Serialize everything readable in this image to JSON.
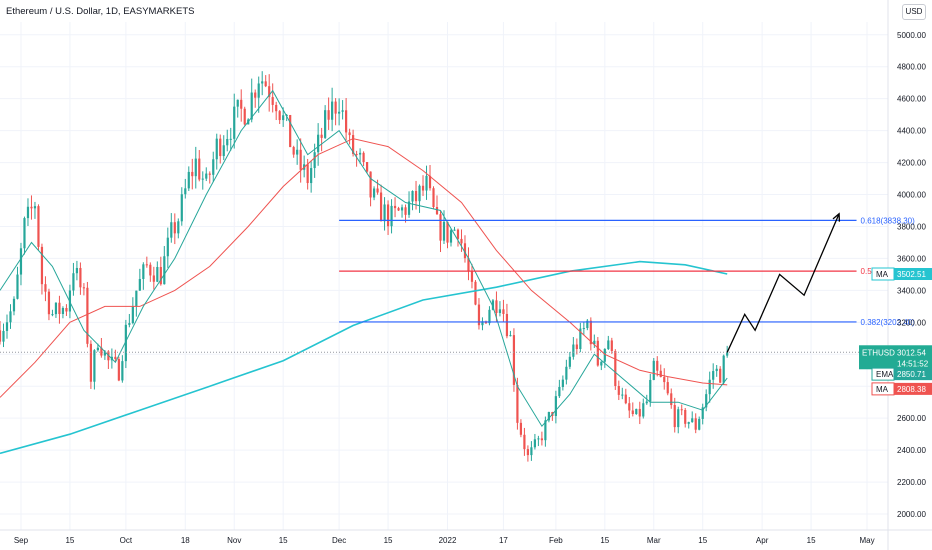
{
  "header": {
    "title": "Ethereum / U.S. Dollar, 1D, EASYMARKETS",
    "currency_button": "USD"
  },
  "colors": {
    "up": "#26a69a",
    "down": "#ef5350",
    "ema": "#26a69a",
    "ma": "#ef5350",
    "ma200": "#25c4d0",
    "fib_blue": "#2962ff",
    "fib_red": "#f23645",
    "last_price": "#22ab94",
    "projection": "#000000"
  },
  "chart_data": {
    "type": "candlestick",
    "symbol": "ETHUSD",
    "y_ticks": [
      2000,
      2200,
      2400,
      2600,
      2800,
      3000,
      3200,
      3400,
      3600,
      3800,
      4000,
      4200,
      4400,
      4600,
      4800,
      5000
    ],
    "y_tick_labels": [
      "2000.00",
      "2200.00",
      "2400.00",
      "2600.00",
      "2800.00",
      "3000.00",
      "3200.00",
      "3400.00",
      "3600.00",
      "3800.00",
      "4000.00",
      "4200.00",
      "4400.00",
      "4600.00",
      "4800.00",
      "5000.00"
    ],
    "x_ticks": [
      {
        "label": "Sep",
        "date": "2021-09-01"
      },
      {
        "label": "15",
        "date": "2021-09-15"
      },
      {
        "label": "Oct",
        "date": "2021-10-01"
      },
      {
        "label": "18",
        "date": "2021-10-18"
      },
      {
        "label": "Nov",
        "date": "2021-11-01"
      },
      {
        "label": "15",
        "date": "2021-11-15"
      },
      {
        "label": "Dec",
        "date": "2021-12-01"
      },
      {
        "label": "15",
        "date": "2021-12-15"
      },
      {
        "label": "2022",
        "date": "2022-01-01"
      },
      {
        "label": "17",
        "date": "2022-01-17"
      },
      {
        "label": "Feb",
        "date": "2022-02-01"
      },
      {
        "label": "15",
        "date": "2022-02-15"
      },
      {
        "label": "Mar",
        "date": "2022-03-01"
      },
      {
        "label": "15",
        "date": "2022-03-15"
      },
      {
        "label": "Apr",
        "date": "2022-04-01"
      },
      {
        "label": "15",
        "date": "2022-04-15"
      },
      {
        "label": "May",
        "date": "2022-05-01"
      }
    ],
    "price_path": [
      [
        "2021-08-26",
        3150
      ],
      [
        "2021-08-30",
        3300
      ],
      [
        "2021-09-02",
        3800
      ],
      [
        "2021-09-05",
        3950
      ],
      [
        "2021-09-07",
        3450
      ],
      [
        "2021-09-10",
        3250
      ],
      [
        "2021-09-14",
        3300
      ],
      [
        "2021-09-16",
        3550
      ],
      [
        "2021-09-19",
        3350
      ],
      [
        "2021-09-21",
        2850
      ],
      [
        "2021-09-23",
        3100
      ],
      [
        "2021-09-26",
        2950
      ],
      [
        "2021-09-29",
        2900
      ],
      [
        "2021-10-01",
        3150
      ],
      [
        "2021-10-04",
        3400
      ],
      [
        "2021-10-07",
        3550
      ],
      [
        "2021-10-11",
        3500
      ],
      [
        "2021-10-14",
        3750
      ],
      [
        "2021-10-16",
        3850
      ],
      [
        "2021-10-19",
        4100
      ],
      [
        "2021-10-21",
        4200
      ],
      [
        "2021-10-24",
        4050
      ],
      [
        "2021-10-27",
        4300
      ],
      [
        "2021-10-30",
        4400
      ],
      [
        "2021-11-02",
        4500
      ],
      [
        "2021-11-05",
        4550
      ],
      [
        "2021-11-08",
        4750
      ],
      [
        "2021-11-10",
        4700
      ],
      [
        "2021-11-13",
        4600
      ],
      [
        "2021-11-16",
        4400
      ],
      [
        "2021-11-19",
        4200
      ],
      [
        "2021-11-22",
        4100
      ],
      [
        "2021-11-25",
        4300
      ],
      [
        "2021-11-28",
        4500
      ],
      [
        "2021-12-01",
        4600
      ],
      [
        "2021-12-04",
        4300
      ],
      [
        "2021-12-07",
        4200
      ],
      [
        "2021-12-10",
        4000
      ],
      [
        "2021-12-13",
        3900
      ],
      [
        "2021-12-16",
        3850
      ],
      [
        "2021-12-19",
        3900
      ],
      [
        "2021-12-22",
        3950
      ],
      [
        "2021-12-26",
        4050
      ],
      [
        "2021-12-29",
        3800
      ],
      [
        "2022-01-01",
        3750
      ],
      [
        "2022-01-04",
        3800
      ],
      [
        "2022-01-07",
        3500
      ],
      [
        "2022-01-10",
        3150
      ],
      [
        "2022-01-13",
        3300
      ],
      [
        "2022-01-16",
        3350
      ],
      [
        "2022-01-19",
        3100
      ],
      [
        "2022-01-21",
        2600
      ],
      [
        "2022-01-24",
        2350
      ],
      [
        "2022-01-27",
        2450
      ],
      [
        "2022-01-30",
        2600
      ],
      [
        "2022-02-02",
        2750
      ],
      [
        "2022-02-05",
        3000
      ],
      [
        "2022-02-08",
        3100
      ],
      [
        "2022-02-10",
        3200
      ],
      [
        "2022-02-13",
        2950
      ],
      [
        "2022-02-16",
        3100
      ],
      [
        "2022-02-18",
        2850
      ],
      [
        "2022-02-21",
        2650
      ],
      [
        "2022-02-24",
        2600
      ],
      [
        "2022-02-27",
        2700
      ],
      [
        "2022-03-01",
        2900
      ],
      [
        "2022-03-04",
        2800
      ],
      [
        "2022-03-07",
        2600
      ],
      [
        "2022-03-10",
        2600
      ],
      [
        "2022-03-13",
        2550
      ],
      [
        "2022-03-16",
        2750
      ],
      [
        "2022-03-18",
        2900
      ],
      [
        "2022-03-20",
        2880
      ],
      [
        "2022-03-22",
        3012.54
      ]
    ],
    "ema_path": [
      [
        "2021-08-26",
        3400
      ],
      [
        "2021-09-04",
        3700
      ],
      [
        "2021-09-10",
        3550
      ],
      [
        "2021-09-19",
        3150
      ],
      [
        "2021-09-28",
        2950
      ],
      [
        "2021-10-06",
        3300
      ],
      [
        "2021-10-15",
        3600
      ],
      [
        "2021-10-24",
        4000
      ],
      [
        "2021-11-03",
        4400
      ],
      [
        "2021-11-12",
        4650
      ],
      [
        "2021-11-22",
        4250
      ],
      [
        "2021-12-01",
        4400
      ],
      [
        "2021-12-10",
        4100
      ],
      [
        "2021-12-20",
        3950
      ],
      [
        "2021-12-30",
        3900
      ],
      [
        "2022-01-07",
        3600
      ],
      [
        "2022-01-14",
        3300
      ],
      [
        "2022-01-21",
        2800
      ],
      [
        "2022-01-28",
        2550
      ],
      [
        "2022-02-05",
        2750
      ],
      [
        "2022-02-12",
        3000
      ],
      [
        "2022-02-20",
        2850
      ],
      [
        "2022-02-28",
        2700
      ],
      [
        "2022-03-08",
        2700
      ],
      [
        "2022-03-15",
        2650
      ],
      [
        "2022-03-22",
        2850.71
      ]
    ],
    "ma_path": [
      [
        "2021-08-26",
        2730
      ],
      [
        "2021-09-05",
        2950
      ],
      [
        "2021-09-15",
        3200
      ],
      [
        "2021-09-25",
        3300
      ],
      [
        "2021-10-05",
        3300
      ],
      [
        "2021-10-15",
        3400
      ],
      [
        "2021-10-25",
        3550
      ],
      [
        "2021-11-05",
        3800
      ],
      [
        "2021-11-15",
        4050
      ],
      [
        "2021-11-25",
        4250
      ],
      [
        "2021-12-05",
        4350
      ],
      [
        "2021-12-15",
        4300
      ],
      [
        "2021-12-25",
        4150
      ],
      [
        "2022-01-05",
        3950
      ],
      [
        "2022-01-15",
        3650
      ],
      [
        "2022-01-25",
        3400
      ],
      [
        "2022-02-05",
        3200
      ],
      [
        "2022-02-15",
        3000
      ],
      [
        "2022-02-25",
        2900
      ],
      [
        "2022-03-05",
        2860
      ],
      [
        "2022-03-15",
        2820
      ],
      [
        "2022-03-22",
        2808.38
      ]
    ],
    "ma200_path": [
      [
        "2021-08-26",
        2380
      ],
      [
        "2021-09-15",
        2500
      ],
      [
        "2021-10-05",
        2650
      ],
      [
        "2021-10-25",
        2800
      ],
      [
        "2021-11-15",
        2960
      ],
      [
        "2021-12-05",
        3180
      ],
      [
        "2021-12-25",
        3340
      ],
      [
        "2022-01-15",
        3420
      ],
      [
        "2022-02-05",
        3520
      ],
      [
        "2022-02-25",
        3580
      ],
      [
        "2022-03-10",
        3560
      ],
      [
        "2022-03-22",
        3502.51
      ]
    ],
    "projection_path": [
      [
        "2022-03-22",
        3012.54
      ],
      [
        "2022-03-27",
        3250
      ],
      [
        "2022-03-30",
        3150
      ],
      [
        "2022-04-06",
        3500
      ],
      [
        "2022-04-13",
        3370
      ],
      [
        "2022-04-23",
        3880
      ]
    ],
    "fib_levels": [
      {
        "ratio": "0.618",
        "value": 3838.3,
        "label": "0.618(3838.30)",
        "color": "blue",
        "start": "2021-12-01"
      },
      {
        "ratio": "0.5",
        "value": 3520.35,
        "label": "0.5(3520.35)",
        "color": "red",
        "start": "2021-12-01"
      },
      {
        "ratio": "0.382",
        "value": 3202.4,
        "label": "0.382(3202.40)",
        "color": "blue",
        "start": "2021-12-01"
      }
    ],
    "fib_end": "2022-04-28",
    "price_tags": [
      {
        "label": "MA",
        "value": "3502.51",
        "y": 3502.51,
        "kind": "ma200"
      },
      {
        "label": "ETHUSD",
        "value": "3012.54",
        "sub": "14:51:52",
        "y": 3012.54,
        "kind": "last"
      },
      {
        "label": "EMA",
        "value": "2850.71",
        "y": 2850.71,
        "kind": "ema"
      },
      {
        "label": "MA",
        "value": "2808.38",
        "y": 2808.38,
        "kind": "ma"
      }
    ],
    "last_price": 3012.54,
    "x_start": "2021-08-26",
    "x_end": "2022-05-07",
    "y_range": [
      1900,
      5080
    ]
  }
}
